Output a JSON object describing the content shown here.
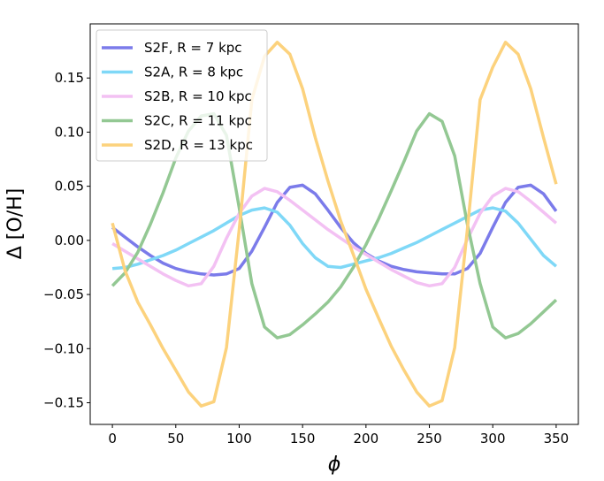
{
  "chart_data": {
    "type": "line",
    "xlabel": "ϕ",
    "ylabel": "Δ [O/H]",
    "xlim": [
      -17.5,
      367.5
    ],
    "ylim": [
      -0.17,
      0.2
    ],
    "xticks": [
      0,
      50,
      100,
      150,
      200,
      250,
      300,
      350
    ],
    "xtick_labels": [
      "0",
      "50",
      "100",
      "150",
      "200",
      "250",
      "300",
      "350"
    ],
    "yticks": [
      -0.15,
      -0.1,
      -0.05,
      0.0,
      0.05,
      0.1,
      0.15
    ],
    "ytick_labels": [
      "−0.15",
      "−0.10",
      "−0.05",
      "0.00",
      "0.05",
      "0.10",
      "0.15"
    ],
    "grid": false,
    "legend_position": "top-left",
    "x": [
      0,
      10,
      20,
      30,
      40,
      50,
      60,
      70,
      80,
      90,
      100,
      110,
      120,
      130,
      140,
      150,
      160,
      170,
      180,
      190,
      200,
      210,
      220,
      230,
      240,
      250,
      260,
      270,
      280,
      290,
      300,
      310,
      320,
      330,
      340,
      350
    ],
    "series": [
      {
        "name": "S2F",
        "legend_label": "S2F, R =  7 kpc",
        "color": "#7b7bea",
        "values": [
          0.012,
          0.003,
          -0.006,
          -0.014,
          -0.021,
          -0.026,
          -0.029,
          -0.031,
          -0.032,
          -0.031,
          -0.026,
          -0.01,
          0.012,
          0.035,
          0.049,
          0.051,
          0.043,
          0.028,
          0.012,
          -0.002,
          -0.012,
          -0.019,
          -0.024,
          -0.027,
          -0.029,
          -0.03,
          -0.031,
          -0.031,
          -0.026,
          -0.012,
          0.012,
          0.035,
          0.049,
          0.051,
          0.043,
          0.027
        ]
      },
      {
        "name": "S2A",
        "legend_label": "S2A, R =  8 kpc",
        "color": "#7fd8f7",
        "values": [
          -0.026,
          -0.025,
          -0.022,
          -0.018,
          -0.014,
          -0.009,
          -0.003,
          0.003,
          0.009,
          0.016,
          0.023,
          0.028,
          0.03,
          0.026,
          0.014,
          -0.003,
          -0.016,
          -0.024,
          -0.025,
          -0.022,
          -0.019,
          -0.016,
          -0.012,
          -0.007,
          -0.002,
          0.004,
          0.01,
          0.016,
          0.022,
          0.028,
          0.03,
          0.027,
          0.016,
          0.001,
          -0.014,
          -0.024
        ]
      },
      {
        "name": "S2B",
        "legend_label": "S2B, R = 10 kpc",
        "color": "#f3c1f3",
        "values": [
          -0.003,
          -0.01,
          -0.017,
          -0.024,
          -0.031,
          -0.037,
          -0.042,
          -0.04,
          -0.024,
          0.002,
          0.025,
          0.041,
          0.048,
          0.045,
          0.037,
          0.028,
          0.019,
          0.01,
          0.002,
          -0.006,
          -0.013,
          -0.02,
          -0.027,
          -0.033,
          -0.039,
          -0.042,
          -0.04,
          -0.025,
          0.001,
          0.025,
          0.041,
          0.048,
          0.045,
          0.036,
          0.026,
          0.016
        ]
      },
      {
        "name": "S2C",
        "legend_label": "S2C, R = 11 kpc",
        "color": "#93c893",
        "values": [
          -0.042,
          -0.03,
          -0.011,
          0.015,
          0.044,
          0.076,
          0.101,
          0.115,
          0.117,
          0.097,
          0.03,
          -0.04,
          -0.08,
          -0.09,
          -0.087,
          -0.078,
          -0.068,
          -0.057,
          -0.043,
          -0.025,
          -0.004,
          0.02,
          0.046,
          0.073,
          0.101,
          0.117,
          0.11,
          0.078,
          0.015,
          -0.04,
          -0.08,
          -0.09,
          -0.086,
          -0.077,
          -0.066,
          -0.055
        ]
      },
      {
        "name": "S2D",
        "legend_label": "S2D, R = 13 kpc",
        "color": "#fcd27d",
        "values": [
          0.016,
          -0.028,
          -0.057,
          -0.078,
          -0.1,
          -0.12,
          -0.14,
          -0.153,
          -0.149,
          -0.099,
          0.01,
          0.13,
          0.17,
          0.183,
          0.172,
          0.14,
          0.095,
          0.055,
          0.018,
          -0.013,
          -0.045,
          -0.072,
          -0.098,
          -0.12,
          -0.14,
          -0.153,
          -0.148,
          -0.099,
          0.01,
          0.13,
          0.16,
          0.183,
          0.172,
          0.14,
          0.095,
          0.052
        ]
      }
    ]
  }
}
